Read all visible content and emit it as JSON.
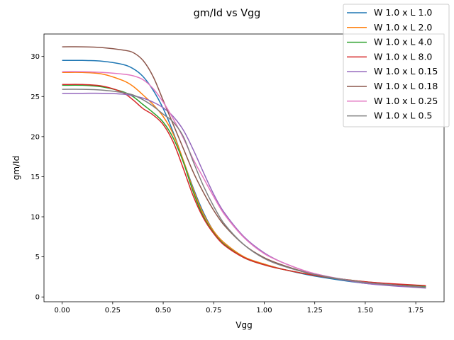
{
  "chart_data": {
    "type": "line",
    "title": "gm/Id vs Vgg",
    "xlabel": "Vgg",
    "ylabel": "gm/Id",
    "xlim": [
      -0.09,
      1.89
    ],
    "ylim": [
      -0.6,
      32.8
    ],
    "xticks": [
      "0.00",
      "0.25",
      "0.50",
      "0.75",
      "1.00",
      "1.25",
      "1.50",
      "1.75"
    ],
    "yticks": [
      "0",
      "5",
      "10",
      "15",
      "20",
      "25",
      "30"
    ],
    "grid": false,
    "legend_position": "top-right",
    "series": [
      {
        "name": "W 1.0 x L 1.0",
        "color": "#1f77b4",
        "x": [
          0,
          0.1,
          0.2,
          0.3,
          0.35,
          0.4,
          0.45,
          0.5,
          0.55,
          0.6,
          0.65,
          0.7,
          0.75,
          0.8,
          0.9,
          1.0,
          1.1,
          1.25,
          1.5,
          1.8
        ],
        "y": [
          29.5,
          29.5,
          29.4,
          29.0,
          28.5,
          27.5,
          25.8,
          23.5,
          20.5,
          17.0,
          13.5,
          10.5,
          8.2,
          6.8,
          5.0,
          4.1,
          3.4,
          2.6,
          1.7,
          1.2
        ]
      },
      {
        "name": "W 1.0 x L 2.0",
        "color": "#ff7f0e",
        "x": [
          0,
          0.1,
          0.2,
          0.3,
          0.35,
          0.4,
          0.45,
          0.5,
          0.55,
          0.6,
          0.65,
          0.7,
          0.75,
          0.8,
          0.9,
          1.0,
          1.1,
          1.25,
          1.5,
          1.8
        ],
        "y": [
          28.0,
          28.0,
          27.8,
          27.0,
          26.3,
          25.2,
          24.0,
          22.5,
          20.3,
          17.0,
          13.3,
          10.3,
          8.2,
          6.8,
          5.0,
          4.1,
          3.4,
          2.7,
          1.8,
          1.3
        ]
      },
      {
        "name": "W 1.0 x L 4.0",
        "color": "#2ca02c",
        "x": [
          0,
          0.1,
          0.2,
          0.3,
          0.35,
          0.4,
          0.45,
          0.5,
          0.55,
          0.6,
          0.65,
          0.7,
          0.75,
          0.8,
          0.9,
          1.0,
          1.1,
          1.25,
          1.5,
          1.8
        ],
        "y": [
          26.4,
          26.4,
          26.2,
          25.6,
          25.0,
          24.0,
          23.0,
          21.8,
          19.8,
          16.8,
          13.0,
          10.0,
          8.0,
          6.6,
          4.9,
          4.0,
          3.4,
          2.7,
          1.9,
          1.3
        ]
      },
      {
        "name": "W 1.0 x L 8.0",
        "color": "#d62728",
        "x": [
          0,
          0.1,
          0.2,
          0.3,
          0.35,
          0.4,
          0.45,
          0.5,
          0.55,
          0.6,
          0.65,
          0.7,
          0.75,
          0.8,
          0.9,
          1.0,
          1.1,
          1.25,
          1.5,
          1.8
        ],
        "y": [
          26.5,
          26.5,
          26.3,
          25.5,
          24.6,
          23.5,
          22.7,
          21.5,
          19.3,
          16.0,
          12.5,
          9.8,
          7.9,
          6.5,
          4.9,
          4.0,
          3.4,
          2.7,
          1.9,
          1.4
        ]
      },
      {
        "name": "W 1.0 x L 0.15",
        "color": "#9467bd",
        "x": [
          0,
          0.1,
          0.2,
          0.3,
          0.35,
          0.4,
          0.45,
          0.5,
          0.55,
          0.6,
          0.65,
          0.7,
          0.75,
          0.8,
          0.9,
          1.0,
          1.1,
          1.25,
          1.5,
          1.8
        ],
        "y": [
          25.4,
          25.4,
          25.4,
          25.3,
          25.1,
          24.8,
          24.3,
          23.6,
          22.5,
          20.8,
          18.3,
          15.5,
          12.8,
          10.6,
          7.5,
          5.5,
          4.2,
          2.9,
          1.7,
          1.1
        ]
      },
      {
        "name": "W 1.0 x L 0.18",
        "color": "#8c564b",
        "x": [
          0,
          0.1,
          0.2,
          0.3,
          0.35,
          0.4,
          0.45,
          0.5,
          0.55,
          0.6,
          0.65,
          0.7,
          0.75,
          0.8,
          0.9,
          1.0,
          1.1,
          1.25,
          1.5,
          1.8
        ],
        "y": [
          31.2,
          31.2,
          31.1,
          30.8,
          30.5,
          29.5,
          27.5,
          24.5,
          21.5,
          18.5,
          15.5,
          13.0,
          10.8,
          9.0,
          6.5,
          4.9,
          3.9,
          2.8,
          1.8,
          1.2
        ]
      },
      {
        "name": "W 1.0 x L 0.25",
        "color": "#e377c2",
        "x": [
          0,
          0.1,
          0.2,
          0.3,
          0.35,
          0.4,
          0.45,
          0.5,
          0.55,
          0.6,
          0.65,
          0.7,
          0.75,
          0.8,
          0.9,
          1.0,
          1.1,
          1.25,
          1.5,
          1.8
        ],
        "y": [
          28.1,
          28.1,
          28.0,
          27.8,
          27.6,
          27.1,
          26.0,
          24.3,
          22.2,
          19.8,
          17.1,
          14.8,
          12.5,
          10.4,
          7.4,
          5.4,
          4.2,
          2.9,
          1.8,
          1.2
        ]
      },
      {
        "name": "W 1.0 x L 0.5",
        "color": "#7f7f7f",
        "x": [
          0,
          0.1,
          0.2,
          0.3,
          0.35,
          0.4,
          0.45,
          0.5,
          0.55,
          0.6,
          0.65,
          0.7,
          0.75,
          0.8,
          0.9,
          1.0,
          1.1,
          1.25,
          1.5,
          1.8
        ],
        "y": [
          25.9,
          25.9,
          25.8,
          25.5,
          25.2,
          24.6,
          23.8,
          22.8,
          21.8,
          20.0,
          16.8,
          13.8,
          11.3,
          9.2,
          6.5,
          4.8,
          3.8,
          2.8,
          1.8,
          1.2
        ]
      }
    ]
  }
}
